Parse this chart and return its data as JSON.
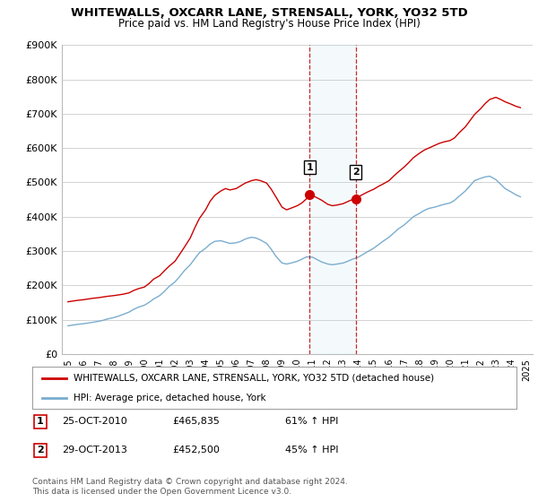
{
  "title": "WHITEWALLS, OXCARR LANE, STRENSALL, YORK, YO32 5TD",
  "subtitle": "Price paid vs. HM Land Registry's House Price Index (HPI)",
  "ylim": [
    0,
    900000
  ],
  "yticks": [
    0,
    100000,
    200000,
    300000,
    400000,
    500000,
    600000,
    700000,
    800000,
    900000
  ],
  "ytick_labels": [
    "£0",
    "£100K",
    "£200K",
    "£300K",
    "£400K",
    "£500K",
    "£600K",
    "£700K",
    "£800K",
    "£900K"
  ],
  "background_color": "#ffffff",
  "grid_color": "#cccccc",
  "red_line_color": "#cc0000",
  "blue_line_color": "#7aadcf",
  "sale1_year": 2010.82,
  "sale1_price": 465835,
  "sale1_label": "1",
  "sale2_year": 2013.83,
  "sale2_price": 452500,
  "sale2_label": "2",
  "legend_entries": [
    "WHITEWALLS, OXCARR LANE, STRENSALL, YORK, YO32 5TD (detached house)",
    "HPI: Average price, detached house, York"
  ],
  "table_rows": [
    [
      "1",
      "25-OCT-2010",
      "£465,835",
      "61% ↑ HPI"
    ],
    [
      "2",
      "29-OCT-2013",
      "£452,500",
      "45% ↑ HPI"
    ]
  ],
  "footnote": "Contains HM Land Registry data © Crown copyright and database right 2024.\nThis data is licensed under the Open Government Licence v3.0.",
  "red_line_data": {
    "years": [
      1995,
      1995.3,
      1995.6,
      1996,
      1996.3,
      1996.6,
      1997,
      1997.3,
      1997.6,
      1998,
      1998.3,
      1998.6,
      1999,
      1999.3,
      1999.6,
      2000,
      2000.3,
      2000.6,
      2001,
      2001.3,
      2001.6,
      2002,
      2002.3,
      2002.6,
      2003,
      2003.3,
      2003.6,
      2004,
      2004.3,
      2004.6,
      2005,
      2005.3,
      2005.6,
      2006,
      2006.3,
      2006.6,
      2007,
      2007.3,
      2007.6,
      2008,
      2008.3,
      2008.6,
      2009,
      2009.3,
      2009.6,
      2010,
      2010.3,
      2010.6,
      2010.82,
      2011,
      2011.3,
      2011.6,
      2012,
      2012.3,
      2012.6,
      2013,
      2013.3,
      2013.6,
      2013.83,
      2014,
      2014.3,
      2014.6,
      2015,
      2015.3,
      2015.6,
      2016,
      2016.3,
      2016.6,
      2017,
      2017.3,
      2017.6,
      2018,
      2018.3,
      2018.6,
      2019,
      2019.3,
      2019.6,
      2020,
      2020.3,
      2020.6,
      2021,
      2021.3,
      2021.6,
      2022,
      2022.3,
      2022.6,
      2023,
      2023.3,
      2023.6,
      2024,
      2024.3,
      2024.6
    ],
    "values": [
      152000,
      154000,
      156000,
      158000,
      160000,
      162000,
      164000,
      166000,
      168000,
      170000,
      172000,
      174000,
      178000,
      185000,
      190000,
      195000,
      205000,
      218000,
      228000,
      242000,
      255000,
      270000,
      290000,
      310000,
      338000,
      368000,
      395000,
      420000,
      445000,
      462000,
      475000,
      482000,
      478000,
      482000,
      490000,
      498000,
      505000,
      508000,
      505000,
      498000,
      480000,
      458000,
      428000,
      420000,
      425000,
      432000,
      440000,
      452000,
      465835,
      462000,
      455000,
      448000,
      436000,
      432000,
      434000,
      438000,
      444000,
      450000,
      452500,
      458000,
      465000,
      472000,
      480000,
      488000,
      495000,
      505000,
      518000,
      530000,
      545000,
      558000,
      572000,
      585000,
      594000,
      600000,
      608000,
      614000,
      618000,
      622000,
      630000,
      645000,
      662000,
      680000,
      698000,
      715000,
      730000,
      742000,
      748000,
      742000,
      735000,
      728000,
      722000,
      718000
    ]
  },
  "blue_line_data": {
    "years": [
      1995,
      1995.3,
      1995.6,
      1996,
      1996.3,
      1996.6,
      1997,
      1997.3,
      1997.6,
      1998,
      1998.3,
      1998.6,
      1999,
      1999.3,
      1999.6,
      2000,
      2000.3,
      2000.6,
      2001,
      2001.3,
      2001.6,
      2002,
      2002.3,
      2002.6,
      2003,
      2003.3,
      2003.6,
      2004,
      2004.3,
      2004.6,
      2005,
      2005.3,
      2005.6,
      2006,
      2006.3,
      2006.6,
      2007,
      2007.3,
      2007.6,
      2008,
      2008.3,
      2008.6,
      2009,
      2009.3,
      2009.6,
      2010,
      2010.3,
      2010.6,
      2011,
      2011.3,
      2011.6,
      2012,
      2012.3,
      2012.6,
      2013,
      2013.3,
      2013.6,
      2014,
      2014.3,
      2014.6,
      2015,
      2015.3,
      2015.6,
      2016,
      2016.3,
      2016.6,
      2017,
      2017.3,
      2017.6,
      2018,
      2018.3,
      2018.6,
      2019,
      2019.3,
      2019.6,
      2020,
      2020.3,
      2020.6,
      2021,
      2021.3,
      2021.6,
      2022,
      2022.3,
      2022.6,
      2023,
      2023.3,
      2023.6,
      2024,
      2024.3,
      2024.6
    ],
    "values": [
      82000,
      84000,
      86000,
      88000,
      90000,
      92000,
      95000,
      98000,
      102000,
      106000,
      110000,
      115000,
      122000,
      130000,
      136000,
      142000,
      150000,
      160000,
      170000,
      182000,
      196000,
      210000,
      225000,
      242000,
      260000,
      278000,
      295000,
      308000,
      320000,
      328000,
      330000,
      326000,
      322000,
      324000,
      328000,
      335000,
      340000,
      338000,
      332000,
      322000,
      305000,
      285000,
      265000,
      262000,
      265000,
      270000,
      276000,
      283000,
      282000,
      275000,
      268000,
      262000,
      260000,
      262000,
      265000,
      270000,
      276000,
      282000,
      290000,
      298000,
      308000,
      318000,
      328000,
      340000,
      352000,
      364000,
      376000,
      388000,
      400000,
      410000,
      418000,
      424000,
      428000,
      432000,
      436000,
      440000,
      448000,
      460000,
      475000,
      490000,
      505000,
      512000,
      516000,
      518000,
      508000,
      495000,
      482000,
      472000,
      464000,
      458000
    ]
  }
}
